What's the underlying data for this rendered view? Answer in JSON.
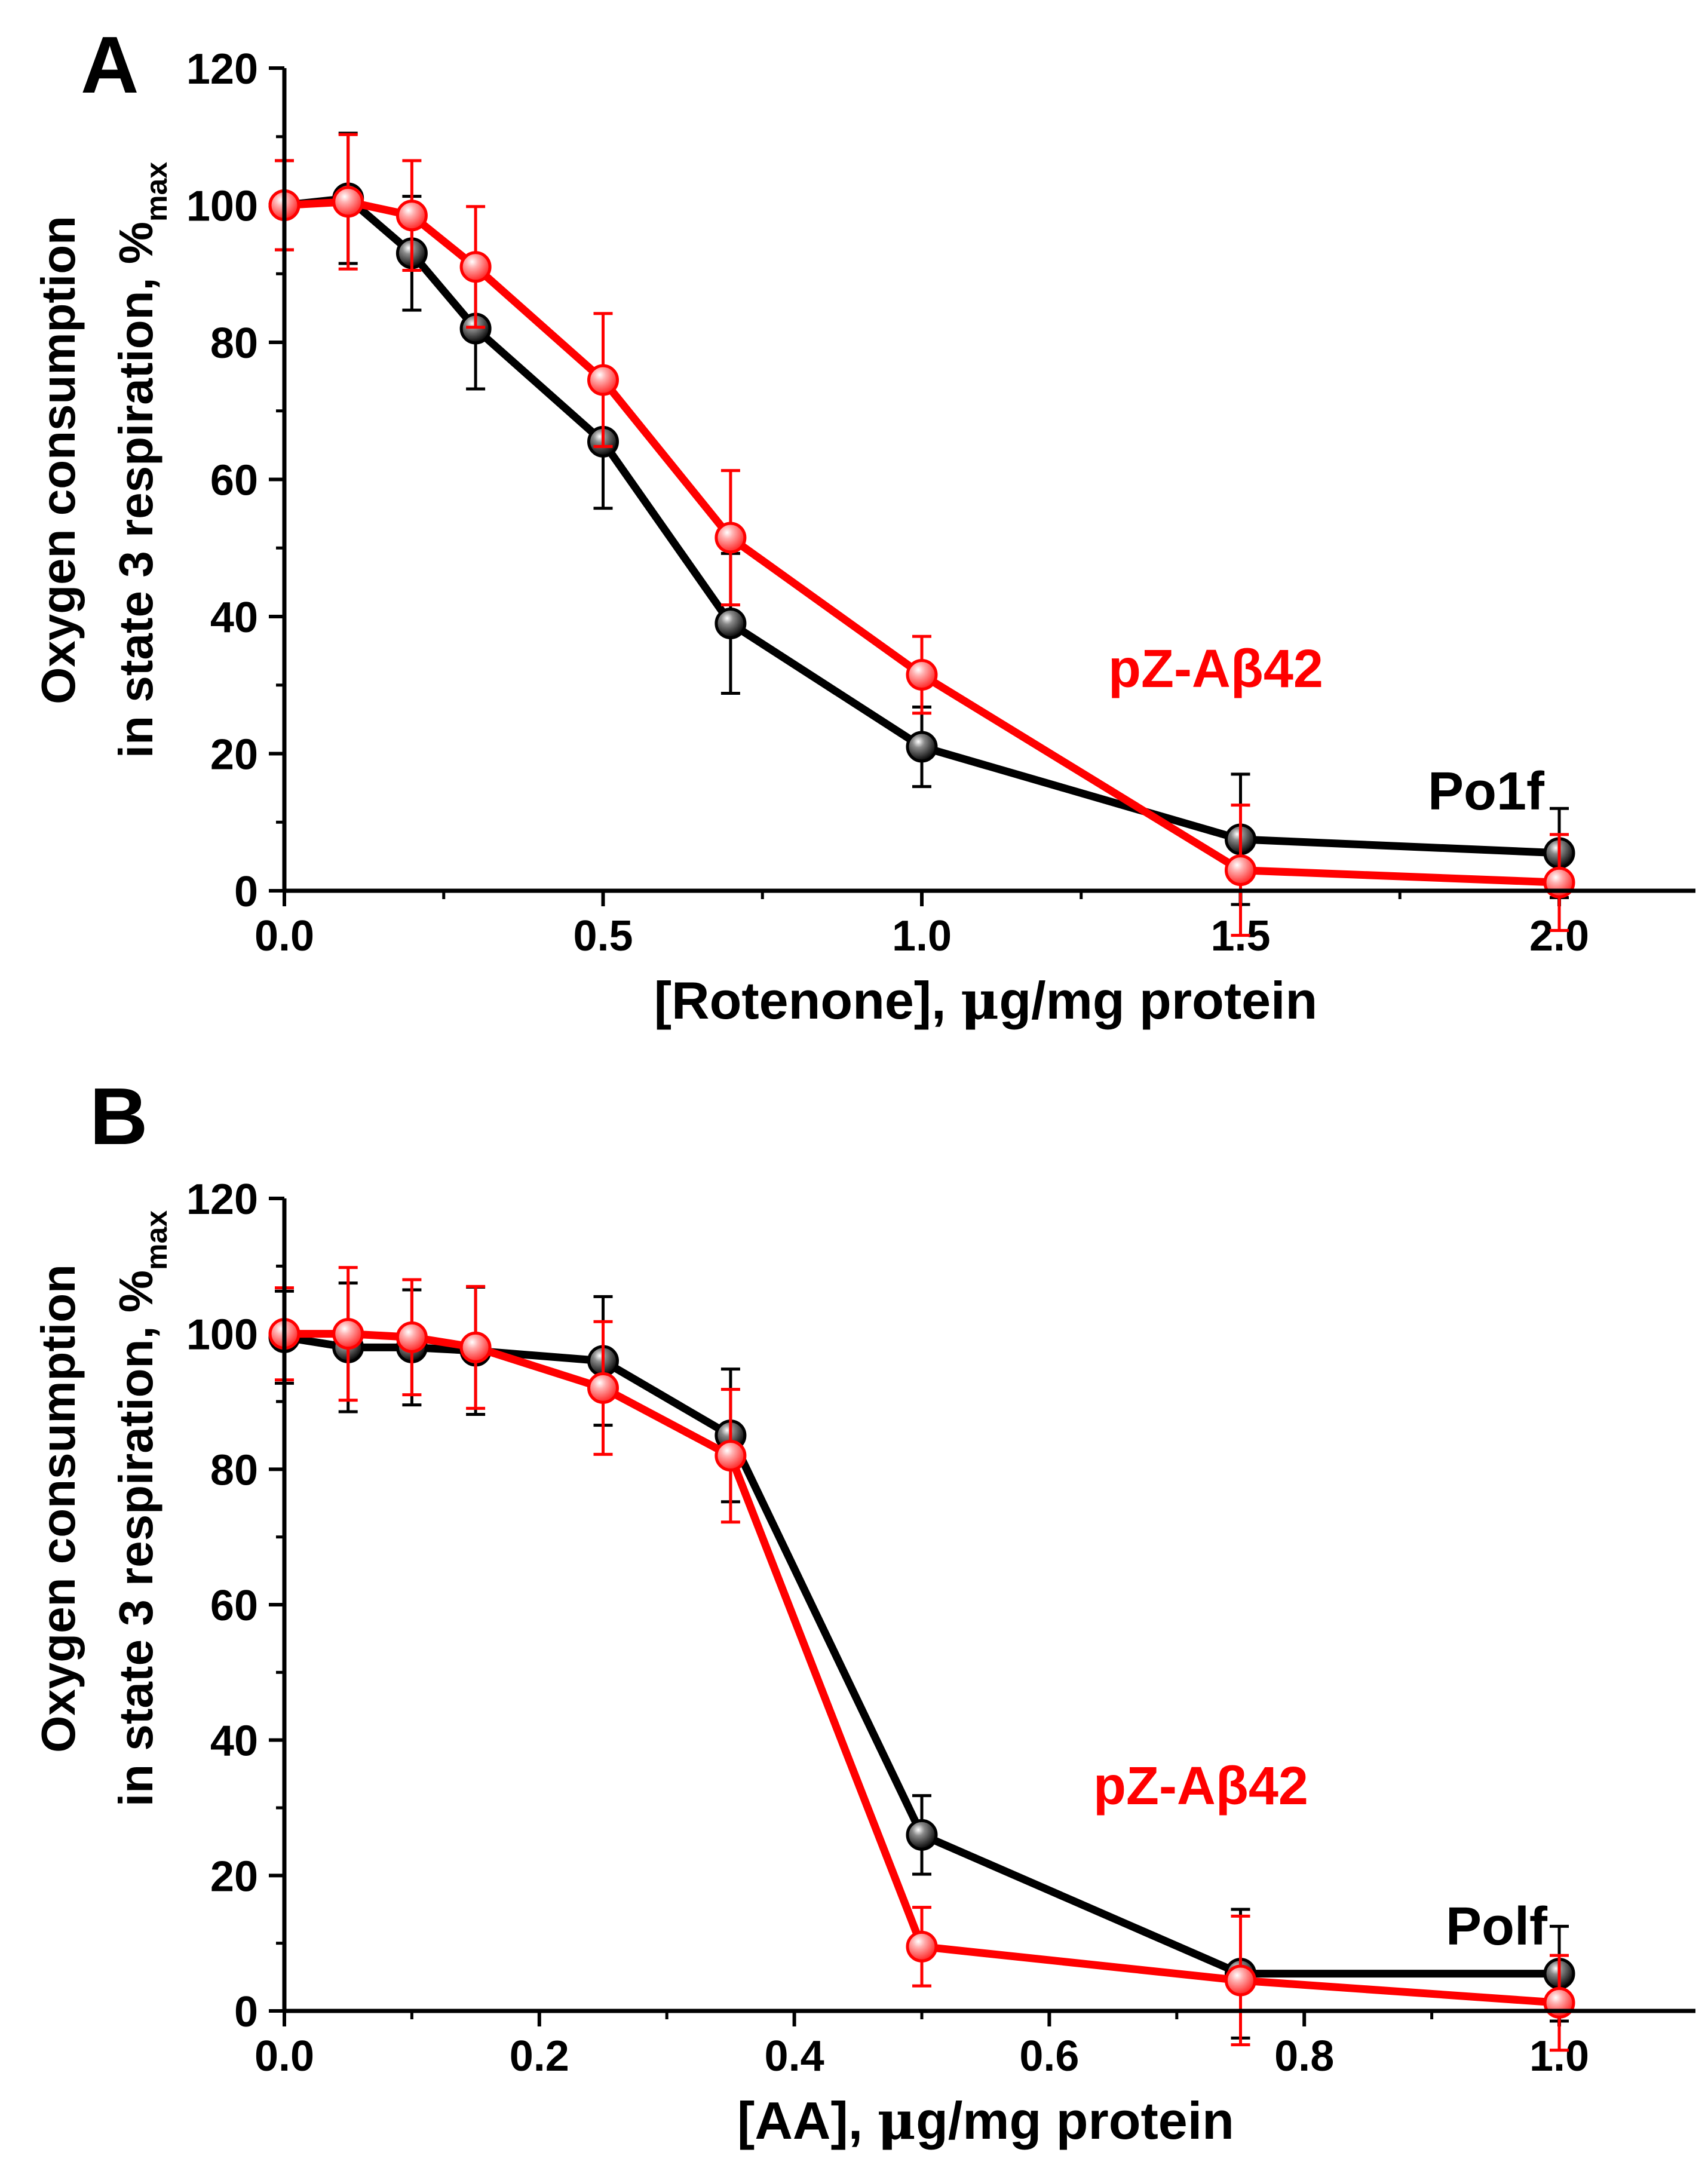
{
  "chart_data": [
    {
      "panel_label": "A",
      "type": "line",
      "xlabel_prefix": "[Rotenone], ",
      "xlabel_mu": "μ",
      "xlabel_suffix": "g/mg protein",
      "ylabel_line1": "Oxygen consumption",
      "ylabel_line2": "in state 3 respiration, %",
      "ylabel_subscript": "max",
      "xlim": [
        0.0,
        2.2
      ],
      "ylim": [
        0,
        120
      ],
      "xticks": [
        0.0,
        0.5,
        1.0,
        1.5,
        2.0
      ],
      "xtick_labels": [
        "0.0",
        "0.5",
        "1.0",
        "1.5",
        "2.0"
      ],
      "x_minor_ticks": [
        0.25,
        0.75,
        1.25,
        1.75
      ],
      "yticks": [
        0,
        20,
        40,
        60,
        80,
        100,
        120
      ],
      "ytick_labels": [
        "0",
        "20",
        "40",
        "60",
        "80",
        "100",
        "120"
      ],
      "y_minor_ticks": [
        10,
        30,
        50,
        70,
        90,
        110
      ],
      "series": [
        {
          "name": "Po1f",
          "color": "#000000",
          "label_text": "Po1f",
          "x": [
            0.0,
            0.1,
            0.2,
            0.3,
            0.5,
            0.7,
            1.0,
            1.5,
            2.0
          ],
          "y": [
            100,
            101,
            93,
            82,
            65.5,
            39,
            21,
            7.5,
            5.5
          ],
          "err": [
            6.5,
            9.5,
            8.3,
            8.8,
            9.7,
            10.2,
            5.8,
            9.5,
            6.5
          ]
        },
        {
          "name": "pZ-Aβ42",
          "color": "#ff0000",
          "label_text": "pZ-Aβ42",
          "x": [
            0.0,
            0.1,
            0.2,
            0.3,
            0.5,
            0.7,
            1.0,
            1.5,
            2.0
          ],
          "y": [
            100,
            100.5,
            98.5,
            91,
            74.5,
            51.5,
            31.5,
            3,
            1.2
          ],
          "err": [
            6.5,
            9.8,
            8.0,
            8.8,
            9.7,
            9.8,
            5.6,
            9.5,
            7.0
          ]
        }
      ]
    },
    {
      "panel_label": "B",
      "type": "line",
      "xlabel_prefix": "[AA], ",
      "xlabel_mu": "μ",
      "xlabel_suffix": "g/mg protein",
      "ylabel_line1": "Oxygen consumption",
      "ylabel_line2": "in state 3 respiration, %",
      "ylabel_subscript": "max",
      "xlim": [
        0.0,
        1.1
      ],
      "ylim": [
        0,
        120
      ],
      "xticks": [
        0.0,
        0.2,
        0.4,
        0.6,
        0.8,
        1.0
      ],
      "xtick_labels": [
        "0.0",
        "0.2",
        "0.4",
        "0.6",
        "0.8",
        "1.0"
      ],
      "x_minor_ticks": [
        0.1,
        0.3,
        0.5,
        0.7,
        0.9
      ],
      "yticks": [
        0,
        20,
        40,
        60,
        80,
        100,
        120
      ],
      "ytick_labels": [
        "0",
        "20",
        "40",
        "60",
        "80",
        "100",
        "120"
      ],
      "y_minor_ticks": [
        10,
        30,
        50,
        70,
        90,
        110
      ],
      "series": [
        {
          "name": "Polf",
          "color": "#000000",
          "label_text": "Polf",
          "x": [
            0.0,
            0.05,
            0.1,
            0.15,
            0.25,
            0.35,
            0.5,
            0.75,
            1.0
          ],
          "y": [
            99.5,
            98,
            98,
            97.5,
            96,
            85,
            26,
            5.5,
            5.5
          ],
          "err": [
            6.8,
            9.5,
            8.5,
            9.4,
            9.5,
            9.8,
            5.8,
            9.5,
            7.0
          ]
        },
        {
          "name": "pZ-Aβ42",
          "color": "#ff0000",
          "label_text": "pZ-Aβ42",
          "x": [
            0.0,
            0.05,
            0.1,
            0.15,
            0.25,
            0.35,
            0.5,
            0.75,
            1.0
          ],
          "y": [
            100,
            100,
            99.5,
            98,
            92,
            82,
            9.5,
            4.5,
            1.2
          ],
          "err": [
            6.8,
            9.8,
            8.5,
            9.0,
            9.8,
            9.8,
            5.8,
            9.5,
            7.0
          ]
        }
      ]
    }
  ]
}
